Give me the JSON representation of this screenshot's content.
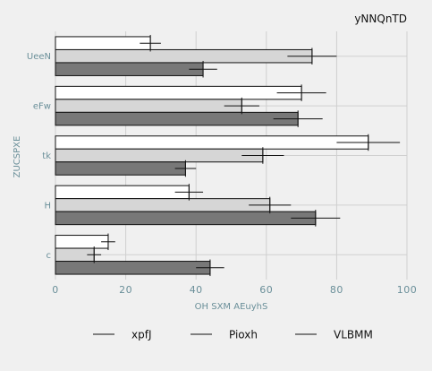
{
  "chart_data": {
    "type": "bar",
    "orientation": "horizontal",
    "title": "yNNQnTD",
    "xlabel": "OH SXM AEuyhS",
    "ylabel": "ZUCSPXE",
    "categories": [
      "UeeN",
      "eFw",
      "tk",
      "H",
      "c"
    ],
    "xlim": [
      0,
      100
    ],
    "xticks": [
      0,
      20,
      40,
      60,
      80,
      100
    ],
    "grid": true,
    "legend_position": "bottom",
    "series": [
      {
        "name": "xpfJ",
        "color": "#ffffff",
        "values": [
          27,
          70,
          89,
          38,
          15
        ],
        "errors": [
          3,
          7,
          9,
          4,
          2
        ]
      },
      {
        "name": "Pioxh",
        "color": "#d6d6d6",
        "values": [
          73,
          53,
          59,
          61,
          11
        ],
        "errors": [
          7,
          5,
          6,
          6,
          2
        ]
      },
      {
        "name": "VLBMM",
        "color": "#787878",
        "values": [
          42,
          69,
          37,
          74,
          44
        ],
        "errors": [
          4,
          7,
          3,
          7,
          4
        ]
      }
    ]
  }
}
